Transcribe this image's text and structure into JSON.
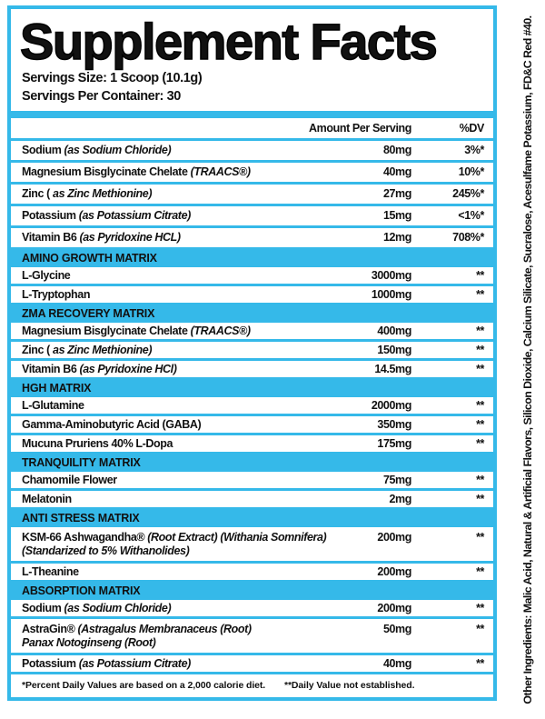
{
  "title": "Supplement Facts",
  "serving_size": "Servings Size: 1 Scoop (10.1g)",
  "servings_per_container": "Servings Per Container: 30",
  "columns": {
    "amount": "Amount Per Serving",
    "dv": "%DV"
  },
  "top_rows": [
    {
      "name": "Sodium",
      "detail": "(as Sodium Chloride)",
      "amount": "80mg",
      "dv": "3%*"
    },
    {
      "name": "Magnesium Bisglycinate Chelate",
      "detail": "(TRAACS®)",
      "amount": "40mg",
      "dv": "10%*"
    },
    {
      "name": "Zinc (",
      "detail": "as Zinc Methionine)",
      "amount": "27mg",
      "dv": "245%*"
    },
    {
      "name": "Potassium",
      "detail": "(as Potassium Citrate)",
      "amount": "15mg",
      "dv": "<1%*"
    },
    {
      "name": "Vitamin B6",
      "detail": "(as Pyridoxine HCL)",
      "amount": "12mg",
      "dv": "708%*"
    }
  ],
  "sections": [
    {
      "title": "AMINO GROWTH MATRIX",
      "rows": [
        {
          "name": "L-Glycine",
          "detail": "",
          "amount": "3000mg",
          "dv": "**"
        },
        {
          "name": "L-Tryptophan",
          "detail": "",
          "amount": "1000mg",
          "dv": "**"
        }
      ]
    },
    {
      "title": "ZMA RECOVERY MATRIX",
      "rows": [
        {
          "name": "Magnesium Bisglycinate Chelate",
          "detail": "(TRAACS®)",
          "amount": "400mg",
          "dv": "**"
        },
        {
          "name": "Zinc (",
          "detail": "as Zinc Methionine)",
          "amount": "150mg",
          "dv": "**"
        },
        {
          "name": "Vitamin B6",
          "detail": "(as Pyridoxine HCl)",
          "amount": "14.5mg",
          "dv": "**"
        }
      ]
    },
    {
      "title": "HGH MATRIX",
      "rows": [
        {
          "name": "L-Glutamine",
          "detail": "",
          "amount": "2000mg",
          "dv": "**"
        },
        {
          "name": "Gamma-Aminobutyric Acid (GABA)",
          "detail": "",
          "amount": "350mg",
          "dv": "**"
        },
        {
          "name": "Mucuna Pruriens 40% L-Dopa",
          "detail": "",
          "amount": "175mg",
          "dv": "**"
        }
      ]
    },
    {
      "title": "TRANQUILITY MATRIX",
      "rows": [
        {
          "name": "Chamomile Flower",
          "detail": "",
          "amount": "75mg",
          "dv": "**"
        },
        {
          "name": "Melatonin",
          "detail": "",
          "amount": "2mg",
          "dv": "**"
        }
      ]
    },
    {
      "title": "ANTI STRESS MATRIX",
      "rows": [
        {
          "name": "KSM-66 Ashwagandha®",
          "detail": "(Root Extract) (Withania Somnifera)",
          "line2": "(Standarized to 5% Withanolides)",
          "amount": "200mg",
          "dv": "**"
        },
        {
          "name": "L-Theanine",
          "detail": "",
          "amount": "200mg",
          "dv": "**"
        }
      ]
    },
    {
      "title": "ABSORPTION MATRIX",
      "rows": [
        {
          "name": "Sodium",
          "detail": "(as Sodium Chloride)",
          "amount": "200mg",
          "dv": "**"
        },
        {
          "name": "AstraGin®",
          "detail": "(Astragalus Membranaceus (Root)",
          "line2": "Panax Notoginseng (Root)",
          "amount": "50mg",
          "dv": "**"
        },
        {
          "name": "Potassium",
          "detail": "(as Potassium Citrate)",
          "amount": "40mg",
          "dv": "**"
        }
      ]
    }
  ],
  "footnote": {
    "dv": "*Percent Daily Values are based on a 2,000 calorie diet.",
    "ne": "**Daily Value not established."
  },
  "other_ingredients": "Other Ingredients: Malic Acid, Natural & Artificial Flavors, Silicon Dioxide, Calcium Silicate, Sucralose, Acesulfame Potassium, FD&C Red #40.",
  "colors": {
    "accent": "#35b9e9",
    "text": "#111111"
  }
}
